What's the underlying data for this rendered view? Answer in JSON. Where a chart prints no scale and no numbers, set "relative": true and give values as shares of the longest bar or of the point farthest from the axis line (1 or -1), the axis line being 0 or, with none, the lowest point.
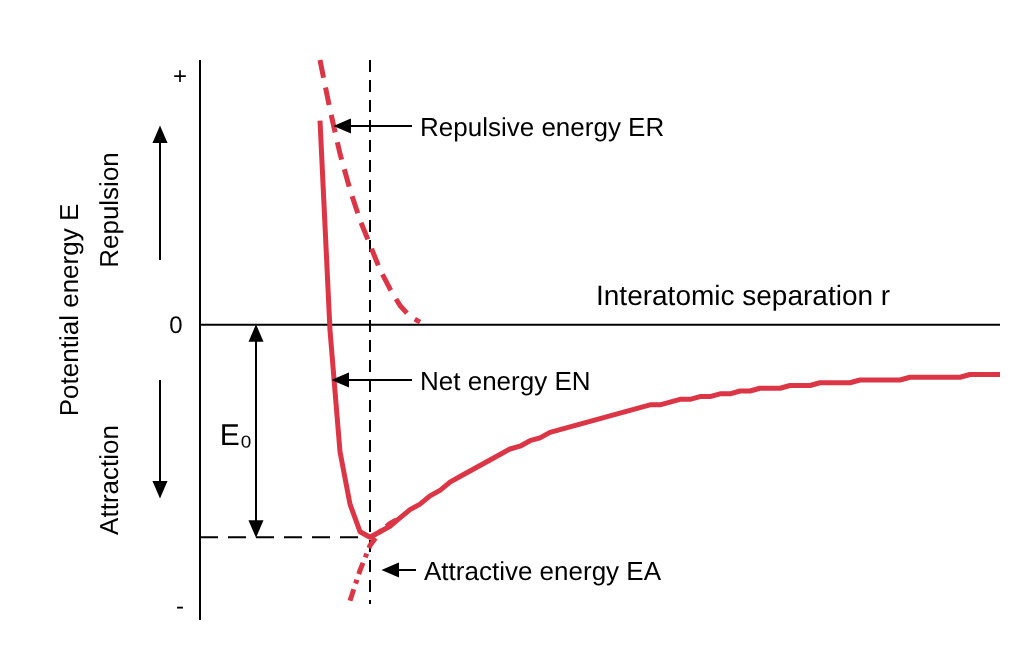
{
  "chart_data": {
    "type": "line",
    "relative": true,
    "categories": [
      null,
      null,
      null,
      null,
      null,
      null,
      null,
      null,
      null,
      null,
      null,
      null,
      null,
      null,
      null,
      null,
      null,
      null,
      null,
      null,
      null,
      null,
      null,
      null,
      null,
      null,
      null,
      null,
      null,
      null,
      null,
      null,
      null,
      null,
      null,
      null,
      null,
      null,
      null,
      null,
      null,
      null,
      null,
      null,
      null,
      null,
      null,
      null,
      null,
      null,
      null,
      null,
      null,
      null,
      null,
      null,
      null,
      null,
      null,
      null,
      null,
      null,
      null,
      null,
      null,
      null,
      null,
      null,
      null,
      null,
      null,
      null,
      null,
      null,
      null,
      null,
      null,
      null,
      null,
      null,
      null
    ],
    "xlabel": "Interatomic separation r",
    "ylabel": "Potential energy E",
    "series": [
      {
        "color": "#dc3545",
        "line_style": "dashed",
        "values": [
          null,
          null,
          null,
          null,
          null,
          null,
          null,
          null,
          null,
          null,
          null,
          null,
          0.96,
          0.78,
          0.62,
          0.49,
          0.38,
          0.29,
          0.2,
          0.13,
          0.07,
          0.03,
          0.01,
          null,
          null,
          null,
          null,
          null,
          null,
          null,
          null,
          null,
          null,
          null,
          null,
          null,
          null,
          null,
          null,
          null,
          null,
          null,
          null,
          null,
          null,
          null,
          null,
          null,
          null,
          null,
          null,
          null,
          null,
          null,
          null,
          null,
          null,
          null,
          null,
          null,
          null,
          null,
          null,
          null,
          null,
          null,
          null,
          null,
          null,
          null,
          null,
          null,
          null,
          null,
          null,
          null,
          null,
          null,
          null,
          null,
          null
        ]
      },
      {
        "color": "#dc3545",
        "line_style": "solid",
        "values": [
          null,
          null,
          null,
          null,
          null,
          null,
          null,
          null,
          null,
          null,
          null,
          null,
          0.74,
          -0.02,
          -0.46,
          -0.65,
          -0.75,
          -0.77,
          -0.75,
          -0.73,
          -0.7,
          -0.67,
          -0.65,
          -0.62,
          -0.6,
          -0.57,
          -0.55,
          -0.53,
          -0.51,
          -0.49,
          -0.47,
          -0.45,
          -0.44,
          -0.42,
          -0.41,
          -0.39,
          -0.38,
          -0.37,
          -0.36,
          -0.35,
          -0.34,
          -0.33,
          -0.32,
          -0.31,
          -0.3,
          -0.29,
          -0.29,
          -0.28,
          -0.27,
          -0.27,
          -0.26,
          -0.26,
          -0.25,
          -0.25,
          -0.24,
          -0.24,
          -0.23,
          -0.23,
          -0.23,
          -0.22,
          -0.22,
          -0.22,
          -0.21,
          -0.21,
          -0.21,
          -0.21,
          -0.2,
          -0.2,
          -0.2,
          -0.2,
          -0.2,
          -0.19,
          -0.19,
          -0.19,
          -0.19,
          -0.19,
          -0.19,
          -0.18,
          -0.18,
          -0.18,
          -0.18
        ]
      },
      {
        "color": "#dc3545",
        "line_style": "dotted",
        "values": [
          null,
          null,
          null,
          null,
          null,
          null,
          null,
          null,
          null,
          null,
          null,
          null,
          null,
          null,
          null,
          -1.0,
          -0.89,
          -0.8,
          -0.75,
          -0.72,
          -0.7,
          null,
          null,
          null,
          null,
          null,
          null,
          null,
          null,
          null,
          null,
          null,
          null,
          null,
          null,
          null,
          null,
          null,
          null,
          null,
          null,
          null,
          null,
          null,
          null,
          null,
          null,
          null,
          null,
          null,
          null,
          null,
          null,
          null,
          null,
          null,
          null,
          null,
          null,
          null,
          null,
          null,
          null,
          null,
          null,
          null,
          null,
          null,
          null,
          null,
          null,
          null,
          null,
          null,
          null,
          null,
          null,
          null,
          null,
          null,
          null
        ]
      }
    ],
    "ref_lines": [
      {
        "axis": "y",
        "value": -0.77,
        "color": "#000000",
        "line_style": "dashed",
        "label": "E₀"
      }
    ],
    "annotations": [
      "+",
      "0",
      "-",
      "Repulsion",
      "Attraction",
      "Repulsive energy ER",
      "Net energy EN",
      "Attractive energy EA"
    ]
  }
}
